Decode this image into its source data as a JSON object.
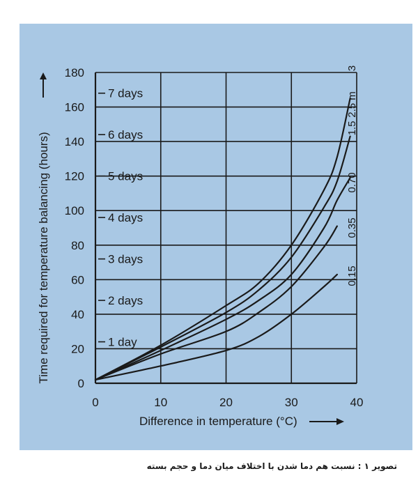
{
  "caption": "تصویر ۱ : نسبت هم دما شدن با اختلاف میان دما و حجم بسته",
  "colors": {
    "panel": "#a9c8e4",
    "ink": "#1a1a1a",
    "page": "#ffffff"
  },
  "chart_data": {
    "type": "line",
    "xlabel": "Difference in temperature (°C)",
    "ylabel": "Time required for temperature balancing (hours)",
    "xlim": [
      0,
      40
    ],
    "ylim": [
      0,
      180
    ],
    "xticks": [
      0,
      10,
      20,
      30,
      40
    ],
    "yticks": [
      0,
      20,
      40,
      60,
      80,
      100,
      120,
      140,
      160,
      180
    ],
    "grid": true,
    "day_markers": [
      {
        "label": "1 day",
        "hours": 24
      },
      {
        "label": "2 days",
        "hours": 48
      },
      {
        "label": "3 days",
        "hours": 72
      },
      {
        "label": "4 days",
        "hours": 96
      },
      {
        "label": "5 days",
        "hours": 120
      },
      {
        "label": "6 days",
        "hours": 144
      },
      {
        "label": "7 days",
        "hours": 168
      }
    ],
    "series": [
      {
        "name": "0.15",
        "x": [
          0,
          10,
          20,
          25,
          30,
          35,
          37
        ],
        "y": [
          2,
          10,
          19,
          27,
          40,
          56,
          63
        ]
      },
      {
        "name": "0.35",
        "x": [
          0,
          10,
          20,
          25,
          30,
          35,
          37
        ],
        "y": [
          2,
          17,
          30,
          41,
          56,
          79,
          91
        ]
      },
      {
        "name": "0.70",
        "x": [
          0,
          10,
          20,
          25,
          30,
          35,
          37,
          39
        ],
        "y": [
          2,
          19,
          37,
          48,
          63,
          90,
          106,
          119
        ]
      },
      {
        "name": "1.5",
        "x": [
          0,
          10,
          20,
          25,
          30,
          35,
          37,
          39
        ],
        "y": [
          2,
          21,
          41,
          54,
          73,
          102,
          117,
          143
        ]
      },
      {
        "name": "2.5 m",
        "x": [
          0,
          10,
          20,
          25,
          30,
          35,
          37,
          39
        ],
        "y": [
          2,
          22,
          45,
          58,
          80,
          112,
          131,
          165
        ]
      }
    ],
    "series_labels_extra": [
      "3"
    ]
  }
}
